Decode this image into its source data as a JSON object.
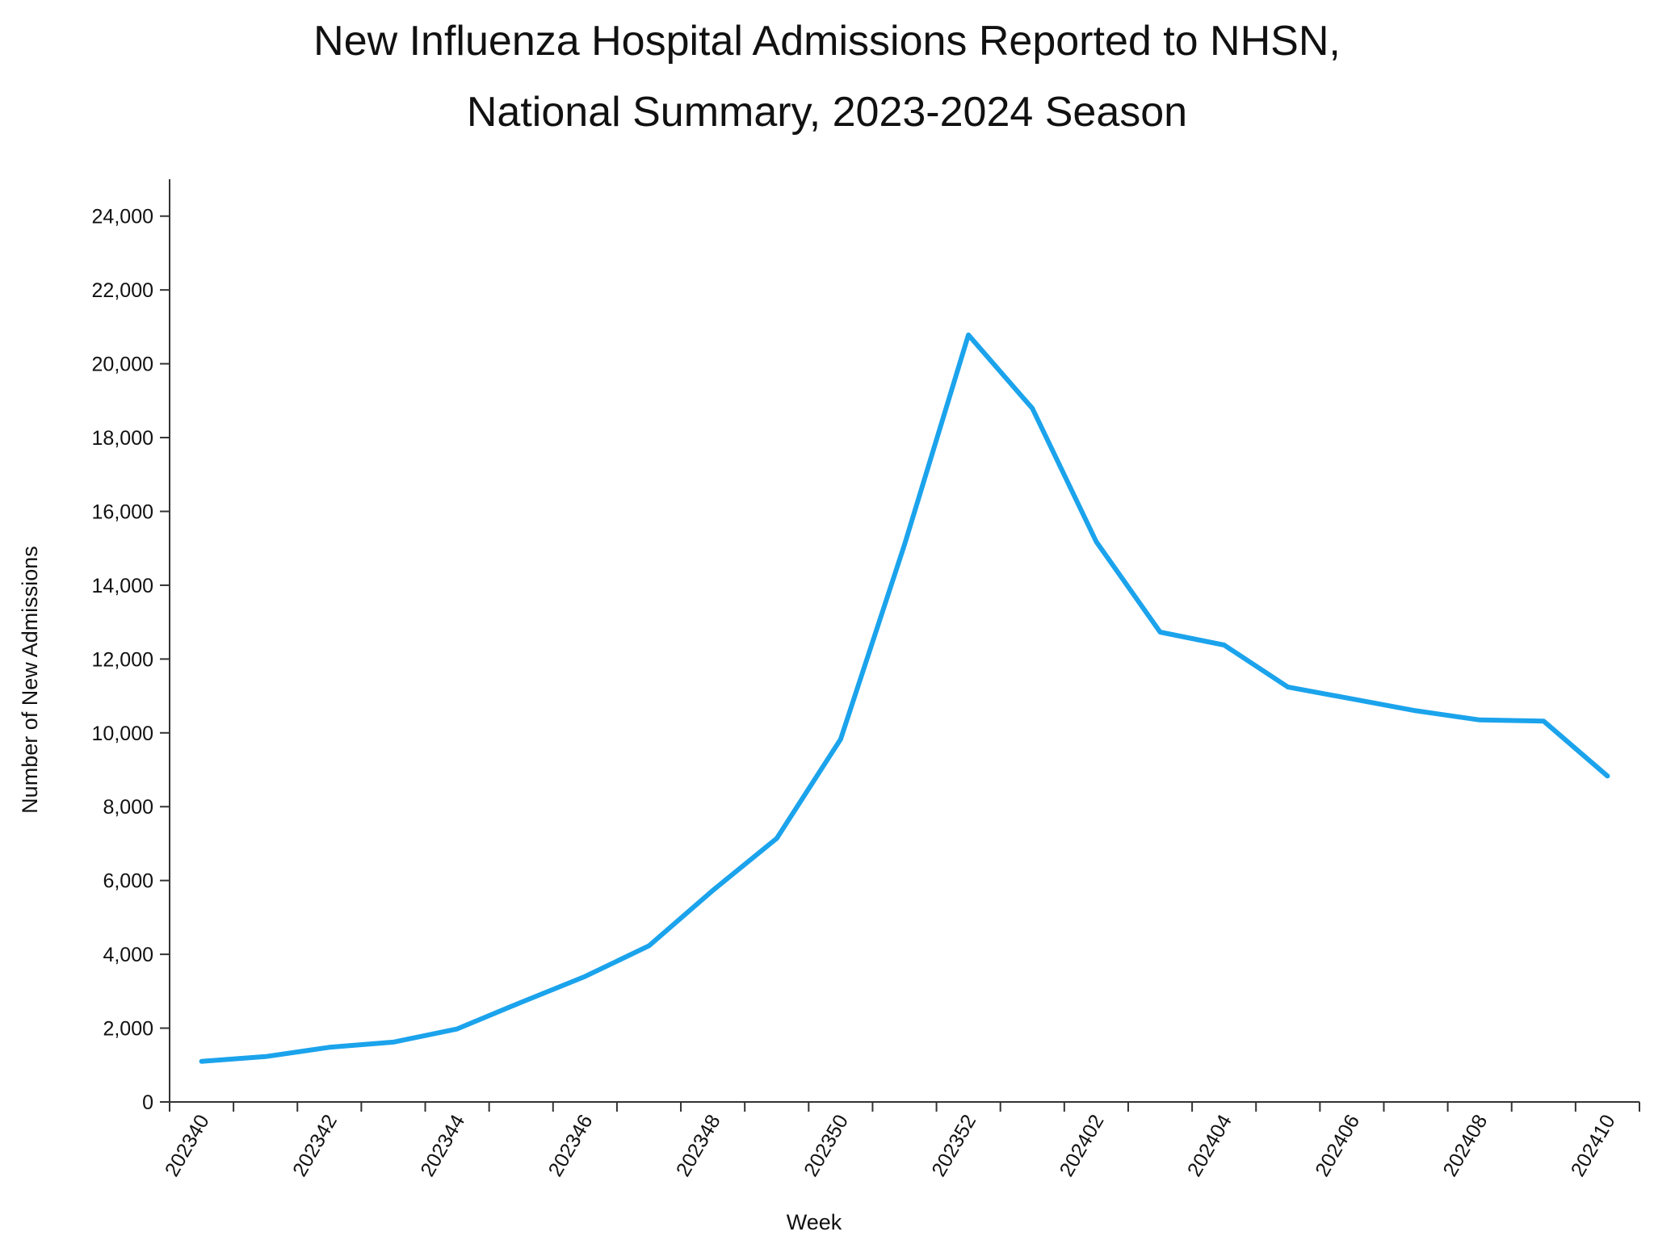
{
  "chart_data": {
    "type": "line",
    "title": "New Influenza Hospital Admissions Reported to NHSN,",
    "subtitle": "National Summary, 2023-2024 Season",
    "xlabel": "Week",
    "ylabel": "Number of New Admissions",
    "ylim": [
      0,
      25000
    ],
    "yticks": [
      0,
      2000,
      4000,
      6000,
      8000,
      10000,
      12000,
      14000,
      16000,
      18000,
      20000,
      22000,
      24000
    ],
    "ytick_labels": [
      "0",
      "2,000",
      "4,000",
      "6,000",
      "8,000",
      "10,000",
      "12,000",
      "14,000",
      "16,000",
      "18,000",
      "20,000",
      "22,000",
      "24,000"
    ],
    "x": [
      "202340",
      "202341",
      "202342",
      "202343",
      "202344",
      "202345",
      "202346",
      "202347",
      "202348",
      "202349",
      "202350",
      "202351",
      "202352",
      "202401",
      "202402",
      "202403",
      "202404",
      "202405",
      "202406",
      "202407",
      "202408",
      "202409",
      "202410"
    ],
    "xtick_labels": [
      "202340",
      "202342",
      "202344",
      "202346",
      "202348",
      "202350",
      "202352",
      "202402",
      "202404",
      "202406",
      "202408",
      "202410"
    ],
    "series": [
      {
        "name": "New Admissions",
        "color": "#1ba3ec",
        "values": [
          1100,
          1230,
          1480,
          1620,
          1980,
          2700,
          3400,
          4230,
          5730,
          7140,
          9830,
          15100,
          20780,
          18790,
          15180,
          12730,
          12380,
          11240,
          10920,
          10600,
          10350,
          10320,
          8830
        ]
      }
    ],
    "grid": false,
    "legend": "none"
  }
}
